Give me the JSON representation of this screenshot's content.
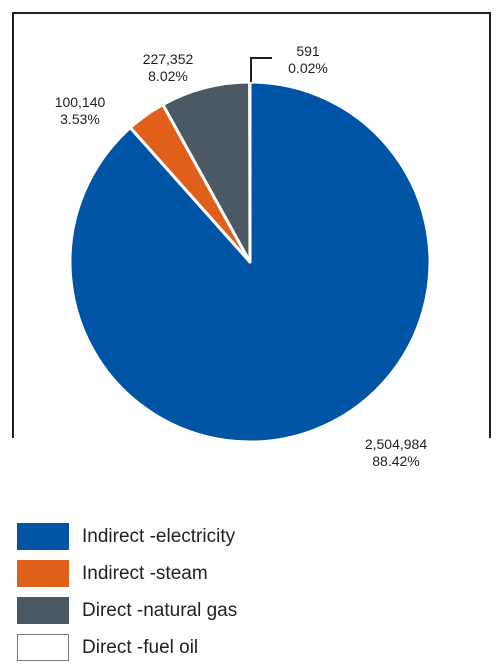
{
  "chart_data": {
    "type": "pie",
    "title": "",
    "start_angle_deg": 0,
    "direction": "clockwise",
    "slices": [
      {
        "name": "Indirect -electricity",
        "value": 2504984,
        "value_label": "2,504,984",
        "percent_label": "88.42%",
        "color": "#0054a6"
      },
      {
        "name": "Indirect -steam",
        "value": 100140,
        "value_label": "100,140",
        "percent_label": "3.53%",
        "color": "#e0601b"
      },
      {
        "name": "Direct -natural gas",
        "value": 227352,
        "value_label": "227,352",
        "percent_label": "8.02%",
        "color": "#4a5964"
      },
      {
        "name": "Direct -fuel oil",
        "value": 591,
        "value_label": "591",
        "percent_label": "0.02%",
        "color": "#ffffff",
        "swatch_border": "#6d7a84"
      }
    ],
    "legend_position": "bottom-left"
  }
}
